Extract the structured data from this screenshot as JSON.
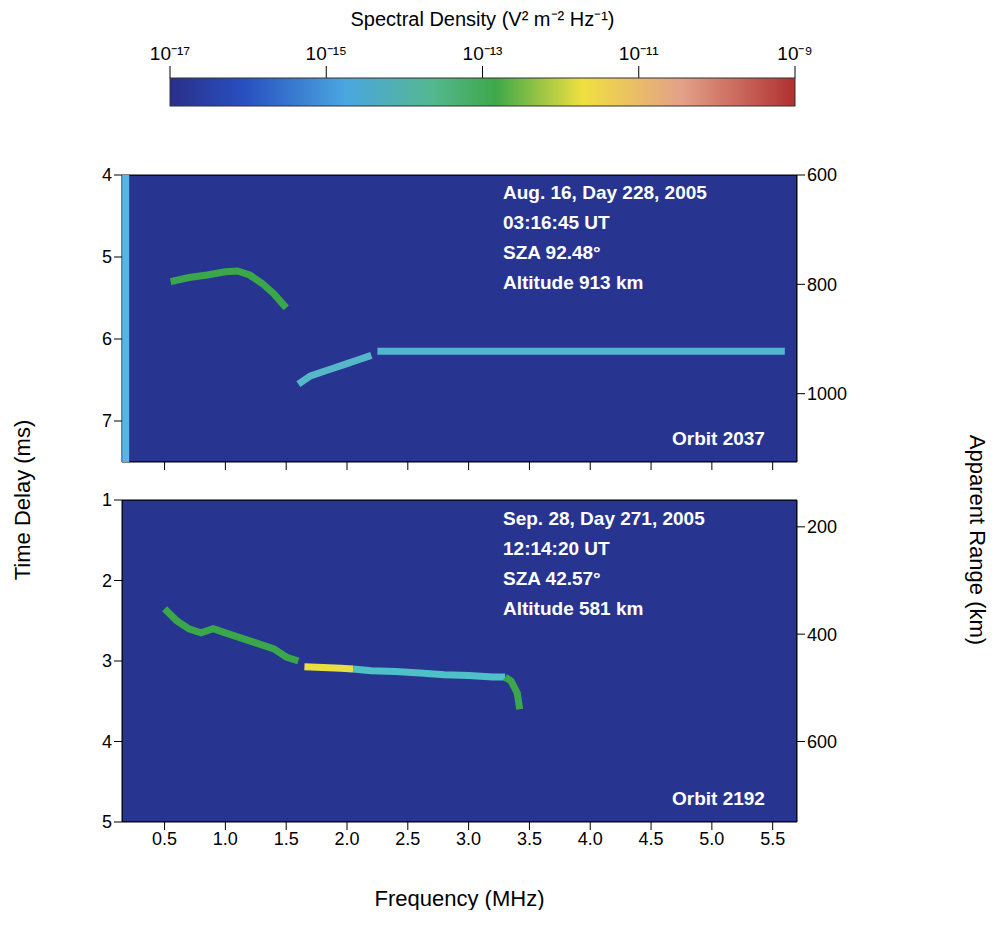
{
  "colorbar": {
    "title": "Spectral Density (V² m⁻² Hz⁻¹)",
    "range": [
      1e-17,
      1e-09
    ],
    "ticks": [
      {
        "value": 1e-17,
        "label": "10⁻¹⁷"
      },
      {
        "value": 1e-15,
        "label": "10⁻¹⁵"
      },
      {
        "value": 1e-13,
        "label": "10⁻¹³"
      },
      {
        "value": 1e-11,
        "label": "10⁻¹¹"
      },
      {
        "value": 1e-09,
        "label": "10⁻⁹"
      }
    ],
    "log": true
  },
  "ylabel": "Time Delay (ms)",
  "y2label": "Apparent Range (km)",
  "xlabel": "Frequency (MHz)",
  "chart_data": [
    {
      "type": "scatter",
      "annotations": [
        "Aug. 16, Day 228, 2005",
        "03:16:45 UT",
        "SZA 92.48°",
        "Altitude 913 km",
        "Orbit 2037"
      ],
      "tick_labels": "y",
      "grid": false,
      "xlim": [
        0.15,
        5.7
      ],
      "xticks": [
        0.5,
        {
          "value": 1,
          "label": "1.0"
        },
        1.5,
        {
          "value": 2,
          "label": "2.0"
        },
        2.5,
        {
          "value": 3,
          "label": "3.0"
        },
        3.5,
        {
          "value": 4,
          "label": "4.0"
        },
        4.5,
        {
          "value": 5,
          "label": "5.0"
        },
        5.5
      ],
      "ylim": [
        4,
        7.5
      ],
      "yticks": [
        4,
        5,
        6,
        7
      ],
      "y2lim": [
        600,
        1125
      ],
      "y2ticks": [
        600,
        800,
        1000
      ],
      "series": [
        {
          "color": "#5ab4e6",
          "marker": "none",
          "line_style": "solid",
          "x": [
            0.18,
            0.18
          ],
          "values": [
            4,
            7.5
          ]
        },
        {
          "color": "#3aa84a",
          "marker": "none",
          "line_style": "solid",
          "x": [
            0.55,
            0.7,
            0.85,
            1.0,
            1.1,
            1.2,
            1.3,
            1.4,
            1.5
          ],
          "values": [
            5.3,
            5.25,
            5.22,
            5.18,
            5.17,
            5.22,
            5.32,
            5.45,
            5.62
          ]
        },
        {
          "color": "#55b8c8",
          "marker": "none",
          "line_style": "solid",
          "x": [
            1.6,
            1.7,
            1.8,
            1.9,
            2.0,
            2.1,
            2.2
          ],
          "values": [
            6.55,
            6.45,
            6.4,
            6.35,
            6.3,
            6.25,
            6.2
          ]
        },
        {
          "color": "#4fb8d0",
          "marker": "none",
          "line_style": "solid",
          "x": [
            2.25,
            5.6
          ],
          "values": [
            6.15,
            6.15
          ]
        }
      ]
    },
    {
      "type": "scatter",
      "annotations": [
        "Sep. 28, Day 271, 2005",
        "12:14:20 UT",
        "SZA 42.57°",
        "Altitude 581 km",
        "Orbit 2192"
      ],
      "grid": false,
      "xlim": [
        0.15,
        5.7
      ],
      "xticks": [
        0.5,
        {
          "value": 1,
          "label": "1.0"
        },
        1.5,
        {
          "value": 2,
          "label": "2.0"
        },
        2.5,
        {
          "value": 3,
          "label": "3.0"
        },
        3.5,
        {
          "value": 4,
          "label": "4.0"
        },
        4.5,
        {
          "value": 5,
          "label": "5.0"
        },
        5.5
      ],
      "ylim": [
        1,
        5
      ],
      "yticks": [
        1,
        2,
        3,
        4,
        5
      ],
      "y2lim": [
        150,
        750
      ],
      "y2ticks": [
        200,
        400,
        600
      ],
      "series": [
        {
          "color": "#3aa84a",
          "marker": "none",
          "line_style": "solid",
          "x": [
            0.5,
            0.6,
            0.7,
            0.8,
            0.9,
            1.0,
            1.1,
            1.2,
            1.3,
            1.4,
            1.5,
            1.6
          ],
          "values": [
            2.35,
            2.5,
            2.6,
            2.65,
            2.6,
            2.65,
            2.7,
            2.75,
            2.8,
            2.85,
            2.95,
            3.0
          ]
        },
        {
          "color": "#4fc0c8",
          "marker": "none",
          "line_style": "solid",
          "x": [
            2.05,
            2.2,
            2.4,
            2.6,
            2.8,
            3.0,
            3.2,
            3.3
          ],
          "values": [
            3.1,
            3.12,
            3.13,
            3.15,
            3.17,
            3.18,
            3.2,
            3.2
          ]
        },
        {
          "color": "#e8e040",
          "marker": "none",
          "line_style": "solid",
          "x": [
            1.65,
            1.8,
            1.95,
            2.05
          ],
          "values": [
            3.07,
            3.08,
            3.09,
            3.1
          ]
        },
        {
          "color": "#3aa84a",
          "marker": "none",
          "line_style": "solid",
          "x": [
            3.3,
            3.35,
            3.4,
            3.42
          ],
          "values": [
            3.2,
            3.25,
            3.4,
            3.6
          ]
        }
      ]
    }
  ]
}
